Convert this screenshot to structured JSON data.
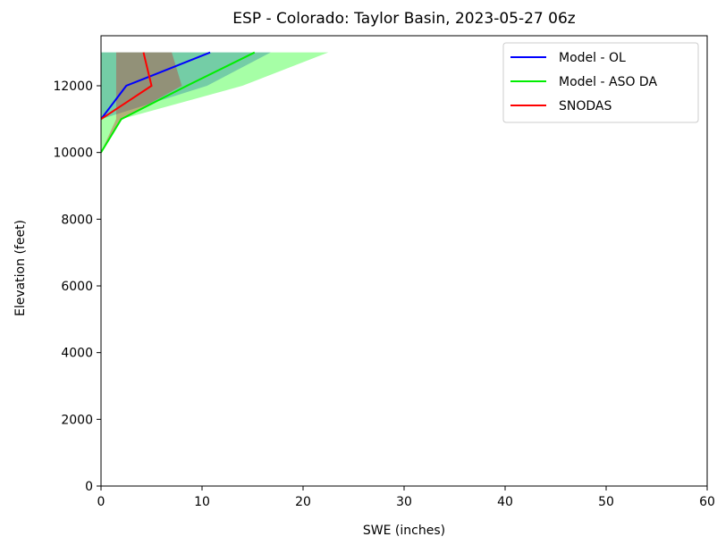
{
  "chart_data": {
    "type": "line",
    "title": "ESP - Colorado: Taylor Basin, 2023-05-27 06z",
    "xlabel": "SWE (inches)",
    "ylabel": "Elevation (feet)",
    "xlim": [
      0,
      60
    ],
    "ylim": [
      0,
      13500
    ],
    "x_ticks": [
      0,
      10,
      20,
      30,
      40,
      50,
      60
    ],
    "y_ticks": [
      0,
      2000,
      4000,
      6000,
      8000,
      10000,
      12000
    ],
    "grid": false,
    "legend_position": "upper right",
    "series": [
      {
        "name": "Model - OL",
        "color": "#0000ff",
        "points": [
          {
            "elevation": 11000,
            "swe": 0
          },
          {
            "elevation": 12000,
            "swe": 2.5
          },
          {
            "elevation": 12300,
            "swe": 5
          },
          {
            "elevation": 13000,
            "swe": 10.8
          }
        ],
        "band": {
          "fill": "#0000ff",
          "opacity": 0.3,
          "polygon": [
            {
              "elevation": 11000,
              "swe": 0
            },
            {
              "elevation": 13000,
              "swe": 0
            },
            {
              "elevation": 13000,
              "swe": 16.8
            },
            {
              "elevation": 12000,
              "swe": 10.5
            },
            {
              "elevation": 11000,
              "swe": 0
            }
          ]
        }
      },
      {
        "name": "Model - ASO DA",
        "color": "#00ee00",
        "points": [
          {
            "elevation": 10000,
            "swe": 0
          },
          {
            "elevation": 11000,
            "swe": 2
          },
          {
            "elevation": 12000,
            "swe": 8.5
          },
          {
            "elevation": 13000,
            "swe": 15.2
          }
        ],
        "band": {
          "fill": "#00ff00",
          "opacity": 0.35,
          "polygon": [
            {
              "elevation": 10000,
              "swe": 0
            },
            {
              "elevation": 13000,
              "swe": 0
            },
            {
              "elevation": 13000,
              "swe": 22.5
            },
            {
              "elevation": 12000,
              "swe": 14
            },
            {
              "elevation": 11000,
              "swe": 2
            },
            {
              "elevation": 10000,
              "swe": 0
            }
          ]
        }
      },
      {
        "name": "SNODAS",
        "color": "#ff0000",
        "points": [
          {
            "elevation": 11000,
            "swe": 0
          },
          {
            "elevation": 11500,
            "swe": 2.5
          },
          {
            "elevation": 12000,
            "swe": 5
          },
          {
            "elevation": 13000,
            "swe": 4.2
          }
        ],
        "band": {
          "fill": "#cc2222",
          "opacity": 0.35,
          "polygon": [
            {
              "elevation": 10000,
              "swe": 0
            },
            {
              "elevation": 11000,
              "swe": 1.5
            },
            {
              "elevation": 13000,
              "swe": 1.5
            },
            {
              "elevation": 13000,
              "swe": 7
            },
            {
              "elevation": 12000,
              "swe": 8
            },
            {
              "elevation": 11000,
              "swe": 2
            },
            {
              "elevation": 10000,
              "swe": 0
            }
          ]
        }
      }
    ]
  }
}
